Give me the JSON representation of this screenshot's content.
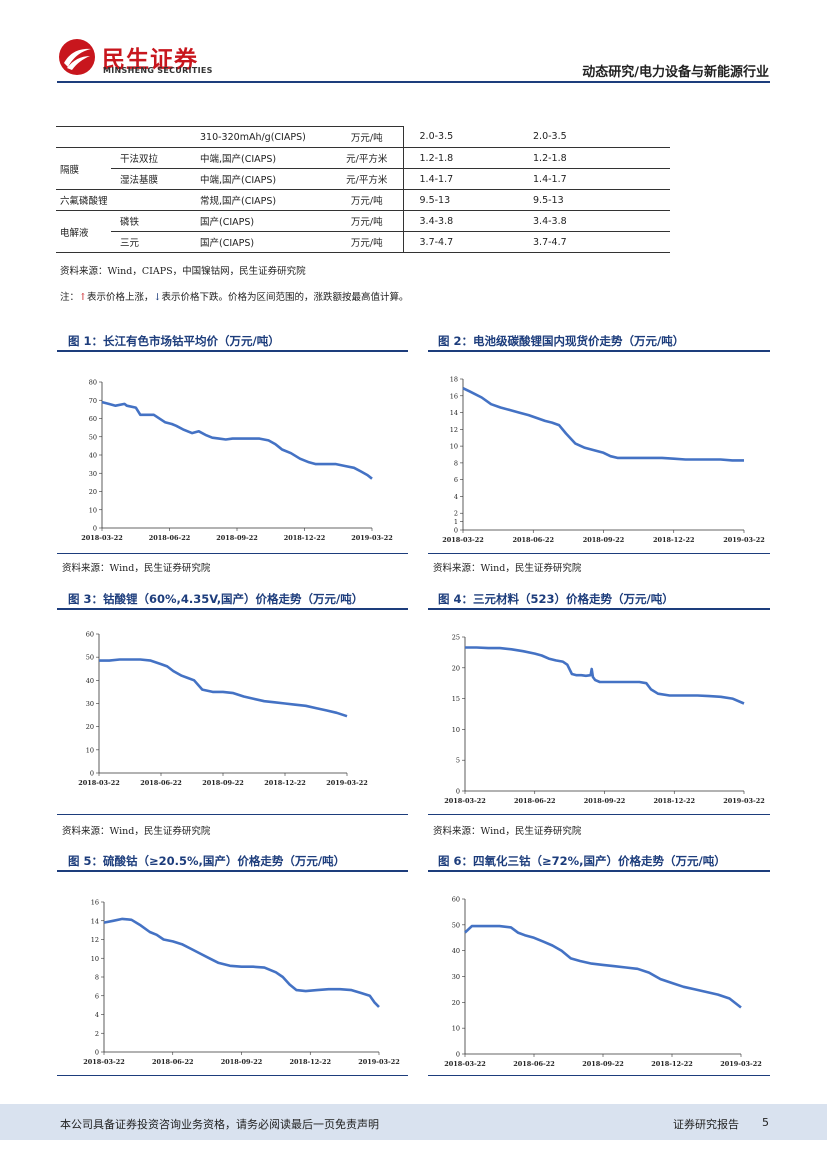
{
  "header": {
    "logo_cn": "民生证券",
    "logo_en": "MINSHENG SECURITIES",
    "title": "动态研究/电力设备与新能源行业",
    "brand_color": "#c8161d",
    "accent_color": "#1d3d7c"
  },
  "table": {
    "rows": [
      {
        "cat": "",
        "sub": "",
        "spec": "310-320mAh/g(CIAPS)",
        "unit": "万元/吨",
        "p1": "2.0-3.5",
        "p2": "2.0-3.5"
      },
      {
        "cat": "隔膜",
        "sub": "干法双拉",
        "spec": "中端,国产(CIAPS)",
        "unit": "元/平方米",
        "p1": "1.2-1.8",
        "p2": "1.2-1.8"
      },
      {
        "cat": "",
        "sub": "湿法基膜",
        "spec": "中端,国产(CIAPS)",
        "unit": "元/平方米",
        "p1": "1.4-1.7",
        "p2": "1.4-1.7"
      },
      {
        "cat": "六氟磷酸锂",
        "sub": "",
        "spec": "常规,国产(CIAPS)",
        "unit": "万元/吨",
        "p1": "9.5-13",
        "p2": "9.5-13"
      },
      {
        "cat": "电解液",
        "sub": "磷铁",
        "spec": "国产(CIAPS)",
        "unit": "万元/吨",
        "p1": "3.4-3.8",
        "p2": "3.4-3.8"
      },
      {
        "cat": "",
        "sub": "三元",
        "spec": "国产(CIAPS)",
        "unit": "万元/吨",
        "p1": "3.7-4.7",
        "p2": "3.7-4.7"
      }
    ],
    "source": "资料来源：Wind，CIAPS，中国镍钴网，民生证券研究院",
    "note_prefix": "注：",
    "note_up": "↑",
    "note_mid": "表示价格上涨，",
    "note_down": "↓",
    "note_suffix": "表示价格下跌。价格为区间范围的，涨跌额按最高值计算。"
  },
  "figures": {
    "fig1": {
      "title": "图 1：长江有色市场钴平均价（万元/吨）",
      "source": "资料来源：Wind，民生证券研究院"
    },
    "fig2": {
      "title": "图 2：电池级碳酸锂国内现货价走势（万元/吨）",
      "source": "资料来源：Wind，民生证券研究院"
    },
    "fig3": {
      "title": "图 3：钴酸锂（60%,4.35V,国产）价格走势（万元/吨）",
      "source": "资料来源：Wind，民生证券研究院"
    },
    "fig4": {
      "title": "图 4：三元材料（523）价格走势（万元/吨）",
      "source": "资料来源：Wind，民生证券研究院"
    },
    "fig5": {
      "title": "图 5：硫酸钴（≥20.5%,国产）价格走势（万元/吨）"
    },
    "fig6": {
      "title": "图 6：四氧化三钴（≥72%,国产）价格走势（万元/吨）"
    }
  },
  "chart_data": [
    {
      "id": "fig1",
      "type": "line",
      "series_color": "#4472c4",
      "ylim": [
        0,
        80
      ],
      "yticks": [
        0,
        10,
        20,
        30,
        40,
        50,
        60,
        70,
        80
      ],
      "xticks": [
        "2018-03-22",
        "2018-06-22",
        "2018-09-22",
        "2018-12-22",
        "2019-03-22"
      ],
      "x": [
        0,
        0.3,
        0.6,
        1,
        1.1,
        1.5,
        1.7,
        2,
        2.3,
        2.8,
        3.1,
        3.3,
        3.6,
        4,
        4.3,
        4.6,
        4.9,
        5.2,
        5.5,
        5.8,
        6,
        6.5,
        7,
        7.4,
        7.7,
        7.9,
        8,
        8.4,
        8.8,
        9.2,
        9.5,
        9.8,
        10.1,
        10.4,
        10.8,
        11.2,
        11.5,
        11.8,
        12
      ],
      "values": [
        69,
        68,
        67,
        68,
        67,
        66,
        62,
        62,
        62,
        58,
        57,
        56,
        54,
        52,
        53,
        51,
        49.5,
        49,
        48.5,
        49,
        49,
        49,
        49,
        48,
        46,
        44,
        43,
        41,
        38,
        36,
        35,
        35,
        35,
        35,
        34,
        33,
        31,
        29,
        27
      ]
    },
    {
      "id": "fig2",
      "type": "line",
      "series_color": "#4472c4",
      "ylim": [
        0,
        18
      ],
      "yticks": [
        0,
        1,
        2,
        4,
        6,
        8,
        10,
        12,
        14,
        16,
        18
      ],
      "xticks": [
        "2018-03-22",
        "2018-06-22",
        "2018-09-22",
        "2018-12-22",
        "2019-03-22"
      ],
      "x": [
        0,
        0.3,
        0.8,
        1.2,
        1.6,
        2,
        2.4,
        2.8,
        3.2,
        3.5,
        3.8,
        4.1,
        4.4,
        4.8,
        5.2,
        5.6,
        6,
        6.3,
        6.6,
        7,
        7.5,
        8,
        8.5,
        9,
        9.5,
        10,
        10.5,
        11,
        11.5,
        12
      ],
      "values": [
        16.9,
        16.5,
        15.8,
        15,
        14.6,
        14.3,
        14,
        13.7,
        13.3,
        13,
        12.8,
        12.5,
        11.5,
        10.3,
        9.8,
        9.5,
        9.2,
        8.8,
        8.6,
        8.6,
        8.6,
        8.6,
        8.6,
        8.5,
        8.4,
        8.4,
        8.4,
        8.4,
        8.3,
        8.3
      ]
    },
    {
      "id": "fig3",
      "type": "line",
      "series_color": "#4472c4",
      "ylim": [
        0,
        60
      ],
      "yticks": [
        0,
        10,
        20,
        30,
        40,
        50,
        60
      ],
      "xticks": [
        "2018-03-22",
        "2018-06-22",
        "2018-09-22",
        "2018-12-22",
        "2019-03-22"
      ],
      "x": [
        0,
        0.5,
        1,
        1.5,
        2,
        2.5,
        3,
        3.3,
        3.6,
        4,
        4.3,
        4.6,
        5,
        5.5,
        6,
        6.5,
        7,
        7.5,
        8,
        8.5,
        9,
        9.5,
        10,
        10.5,
        11,
        11.5,
        12
      ],
      "values": [
        48.5,
        48.5,
        49,
        49,
        49,
        48.5,
        47,
        46,
        44,
        42,
        41,
        40,
        36,
        35,
        35,
        34.5,
        33,
        32,
        31,
        30.5,
        30,
        29.5,
        29,
        28,
        27,
        26,
        24.5
      ]
    },
    {
      "id": "fig4",
      "type": "line",
      "series_color": "#4472c4",
      "ylim": [
        0,
        25
      ],
      "yticks": [
        0,
        5,
        10,
        15,
        20,
        25
      ],
      "xticks": [
        "2018-03-22",
        "2018-06-22",
        "2018-09-22",
        "2018-12-22",
        "2019-03-22"
      ],
      "x": [
        0,
        0.5,
        1,
        1.5,
        2,
        2.5,
        3,
        3.3,
        3.6,
        3.9,
        4.2,
        4.4,
        4.6,
        4.8,
        5,
        5.2,
        5.4,
        5.45,
        5.5,
        5.6,
        5.8,
        6.3,
        7,
        7.5,
        7.8,
        8,
        8.3,
        8.8,
        9.5,
        10,
        10.5,
        11,
        11.5,
        12
      ],
      "values": [
        23.3,
        23.3,
        23.2,
        23.2,
        23,
        22.7,
        22.3,
        22,
        21.5,
        21.2,
        21,
        20.5,
        19,
        18.8,
        18.8,
        18.7,
        18.8,
        19.8,
        18.5,
        18,
        17.7,
        17.7,
        17.7,
        17.7,
        17.5,
        16.5,
        15.8,
        15.5,
        15.5,
        15.5,
        15.4,
        15.3,
        15,
        14.2
      ]
    },
    {
      "id": "fig5",
      "type": "line",
      "series_color": "#4472c4",
      "ylim": [
        0,
        16
      ],
      "yticks": [
        0,
        2,
        4,
        6,
        8,
        10,
        12,
        14,
        16
      ],
      "xticks": [
        "2018-03-22",
        "2018-06-22",
        "2018-09-22",
        "2018-12-22",
        "2019-03-22"
      ],
      "x": [
        0,
        0.4,
        0.8,
        1.2,
        1.6,
        2,
        2.3,
        2.6,
        3,
        3.4,
        3.8,
        4.2,
        4.6,
        5,
        5.5,
        6,
        6.5,
        7,
        7.5,
        7.8,
        8.1,
        8.4,
        8.8,
        9.3,
        9.8,
        10.3,
        10.8,
        11.2,
        11.6,
        11.8,
        12
      ],
      "values": [
        13.8,
        14,
        14.2,
        14.1,
        13.5,
        12.8,
        12.5,
        12,
        11.8,
        11.5,
        11,
        10.5,
        10,
        9.5,
        9.2,
        9.1,
        9.1,
        9,
        8.5,
        8,
        7.2,
        6.6,
        6.5,
        6.6,
        6.7,
        6.7,
        6.6,
        6.3,
        6,
        5.3,
        4.8
      ]
    },
    {
      "id": "fig6",
      "type": "line",
      "series_color": "#4472c4",
      "ylim": [
        0,
        60
      ],
      "yticks": [
        0,
        10,
        20,
        30,
        40,
        50,
        60
      ],
      "xticks": [
        "2018-03-22",
        "2018-06-22",
        "2018-09-22",
        "2018-12-22",
        "2019-03-22"
      ],
      "x": [
        0,
        0.3,
        0.6,
        1,
        1.5,
        2,
        2.3,
        2.6,
        3,
        3.4,
        3.8,
        4.2,
        4.6,
        5,
        5.5,
        6,
        6.5,
        7,
        7.5,
        8,
        8.5,
        9,
        9.5,
        10,
        10.5,
        11,
        11.5,
        12
      ],
      "values": [
        47,
        49.5,
        49.5,
        49.5,
        49.5,
        49,
        47,
        46,
        45,
        43.5,
        42,
        40,
        37,
        36,
        35,
        34.5,
        34,
        33.5,
        33,
        31.5,
        29,
        27.5,
        26,
        25,
        24,
        23,
        21.5,
        18
      ]
    }
  ],
  "footer": {
    "left": "本公司具备证券投资咨询业务资格，请务必阅读最后一页免责声明",
    "right": "证券研究报告",
    "page": "5",
    "bg_color": "#d9e2ef"
  }
}
